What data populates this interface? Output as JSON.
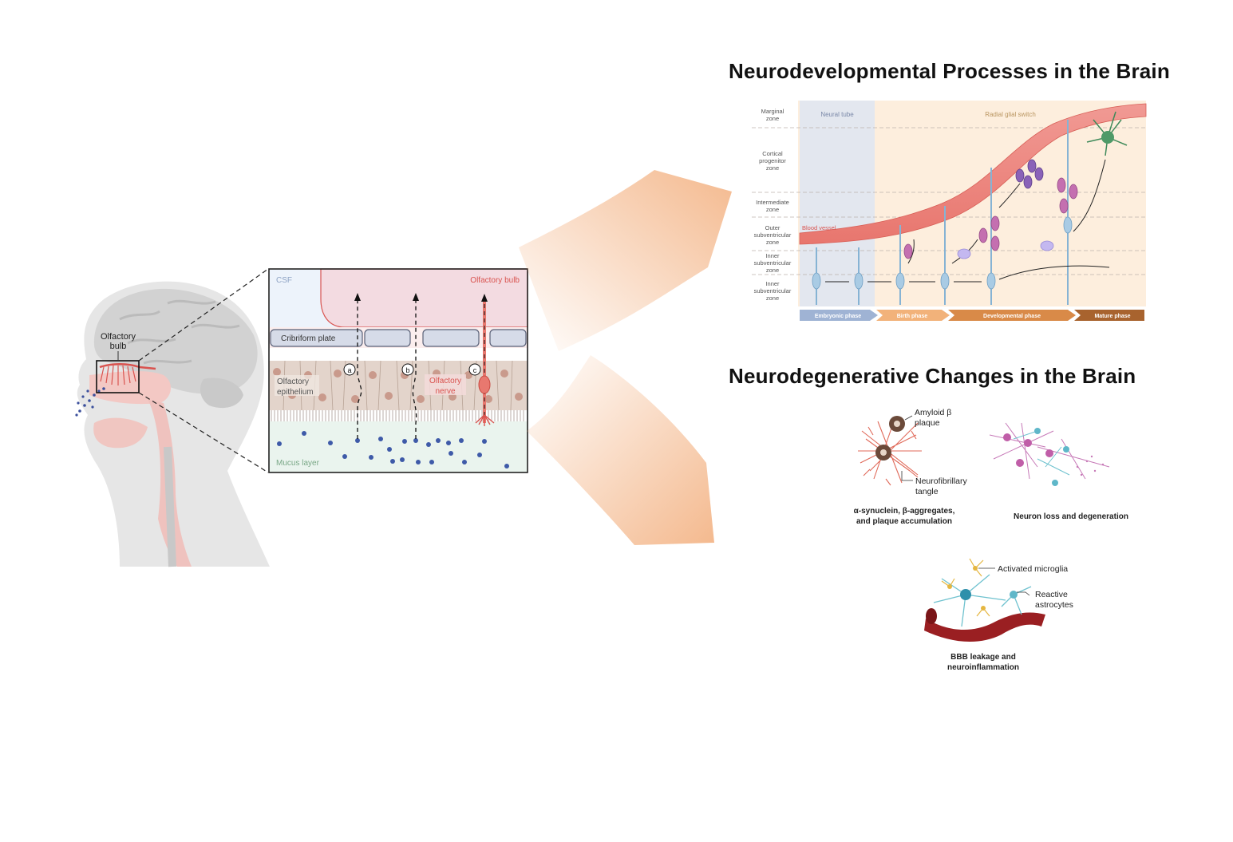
{
  "head": {
    "olfactory_bulb_label_line1": "Olfactory",
    "olfactory_bulb_label_line2": "bulb"
  },
  "inset": {
    "csf": "CSF",
    "olfactory_bulb": "Olfactory bulb",
    "cribriform_plate": "Cribriform plate",
    "olfactory_epithelium_line1": "Olfactory",
    "olfactory_epithelium_line2": "epithelium",
    "olfactory_nerve_line1": "Olfactory",
    "olfactory_nerve_line2": "nerve",
    "mucus_layer": "Mucus layer",
    "route_a": "a",
    "route_b": "b",
    "route_c": "c"
  },
  "dev": {
    "title": "Neurodevelopmental  Processes in the Brain",
    "zones": {
      "marginal_1": "Marginal",
      "marginal_2": "zone",
      "cortical_1": "Cortical",
      "cortical_2": "progenitor",
      "cortical_3": "zone",
      "intermediate_1": "Intermediate",
      "intermediate_2": "zone",
      "outer_1": "Outer",
      "outer_2": "subventricular",
      "outer_3": "zone",
      "inner_a_1": "Inner",
      "inner_a_2": "subventricular",
      "inner_a_3": "zone",
      "inner_b_1": "Inner",
      "inner_b_2": "subventricular",
      "inner_b_3": "zone"
    },
    "neural_tube": "Neural tube",
    "radial_glial_switch": "Radial glial switch",
    "blood_vessel": "Blood vessel",
    "phases": [
      "Embryonic phase",
      "Birth phase",
      "Developmental phase",
      "Mature phase"
    ]
  },
  "degen": {
    "title": "Neurodegenerative  Changes in the Brain",
    "amyloid_1": "Amyloid β",
    "amyloid_2": "plaque",
    "nft_1": "Neurofibrillary",
    "nft_2": "tangle",
    "caption1_line1": "α-synuclein, β-aggregates,",
    "caption1_line2": "and plaque accumulation",
    "caption2": "Neuron loss and degeneration",
    "microglia": "Activated microglia",
    "astro_1": "Reactive",
    "astro_2": "astrocytes",
    "caption3_line1": "BBB leakage and",
    "caption3_line2": "neuroinflammation"
  },
  "colors": {
    "accent_red": "#d9534f",
    "arrow_orange": "#f4b98e",
    "dev_bg": "#fdeedd",
    "neural_tube_bg": "#e3e7ef"
  }
}
